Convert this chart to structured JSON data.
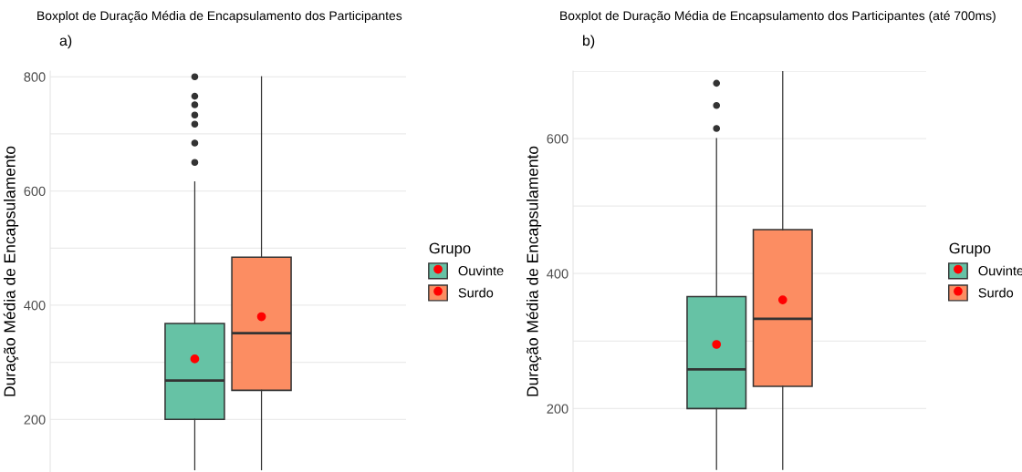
{
  "chart_data": [
    {
      "type": "box",
      "title": "Boxplot de Duração Média de Encapsulamento dos Participantes",
      "subtitle": "a)",
      "ylabel": "Duração Média de Encapsulamento",
      "legend_title": "Grupo",
      "categories": [
        null
      ],
      "ylim": [
        108,
        810
      ],
      "yticks": [
        200,
        {
          "value": 300,
          "label": null
        },
        400,
        {
          "value": 500,
          "label": null
        },
        600,
        {
          "value": 700,
          "label": null
        },
        800
      ],
      "grid": "y",
      "legend": "right",
      "tick_labels": "y",
      "series": [
        {
          "name": "Ouvinte",
          "color": "#66c2a5",
          "boxes": [
            {
              "low": 112,
              "q1": 200,
              "median": 268,
              "q3": 368,
              "high": 616,
              "mean": 306,
              "outliers": [
                650,
                684,
                717,
                733,
                751,
                766,
                800
              ]
            }
          ]
        },
        {
          "name": "Surdo",
          "color": "#fc8d62",
          "boxes": [
            {
              "low": 112,
              "q1": 251,
              "median": 351,
              "q3": 484,
              "high": 800,
              "mean": 380
            }
          ]
        }
      ]
    },
    {
      "type": "box",
      "title": "Boxplot de Duração Média de Encapsulamento dos Participantes (até 700ms)",
      "subtitle": "b)",
      "ylabel": "Duração Média de Encapsulamento",
      "legend_title": "Grupo",
      "categories": [
        null
      ],
      "ylim": [
        106,
        700
      ],
      "yticks": [
        {
          "value": 200,
          "label": "200"
        },
        {
          "value": 300,
          "label": null
        },
        400,
        {
          "value": 500,
          "label": null
        },
        600,
        {
          "value": 700,
          "label": null
        }
      ],
      "grid": "y",
      "legend": "right",
      "tick_labels": "y",
      "series": [
        {
          "name": "Ouvinte",
          "color": "#66c2a5",
          "boxes": [
            {
              "low": 110,
              "q1": 200,
              "median": 258,
              "q3": 366,
              "high": 600,
              "mean": 295,
              "outliers": [
                615,
                649,
                682
              ]
            }
          ]
        },
        {
          "name": "Surdo",
          "color": "#fc8d62",
          "boxes": [
            {
              "low": 110,
              "q1": 233,
              "median": 333,
              "q3": 465,
              "high": 700,
              "mean": 361
            }
          ]
        }
      ]
    }
  ]
}
